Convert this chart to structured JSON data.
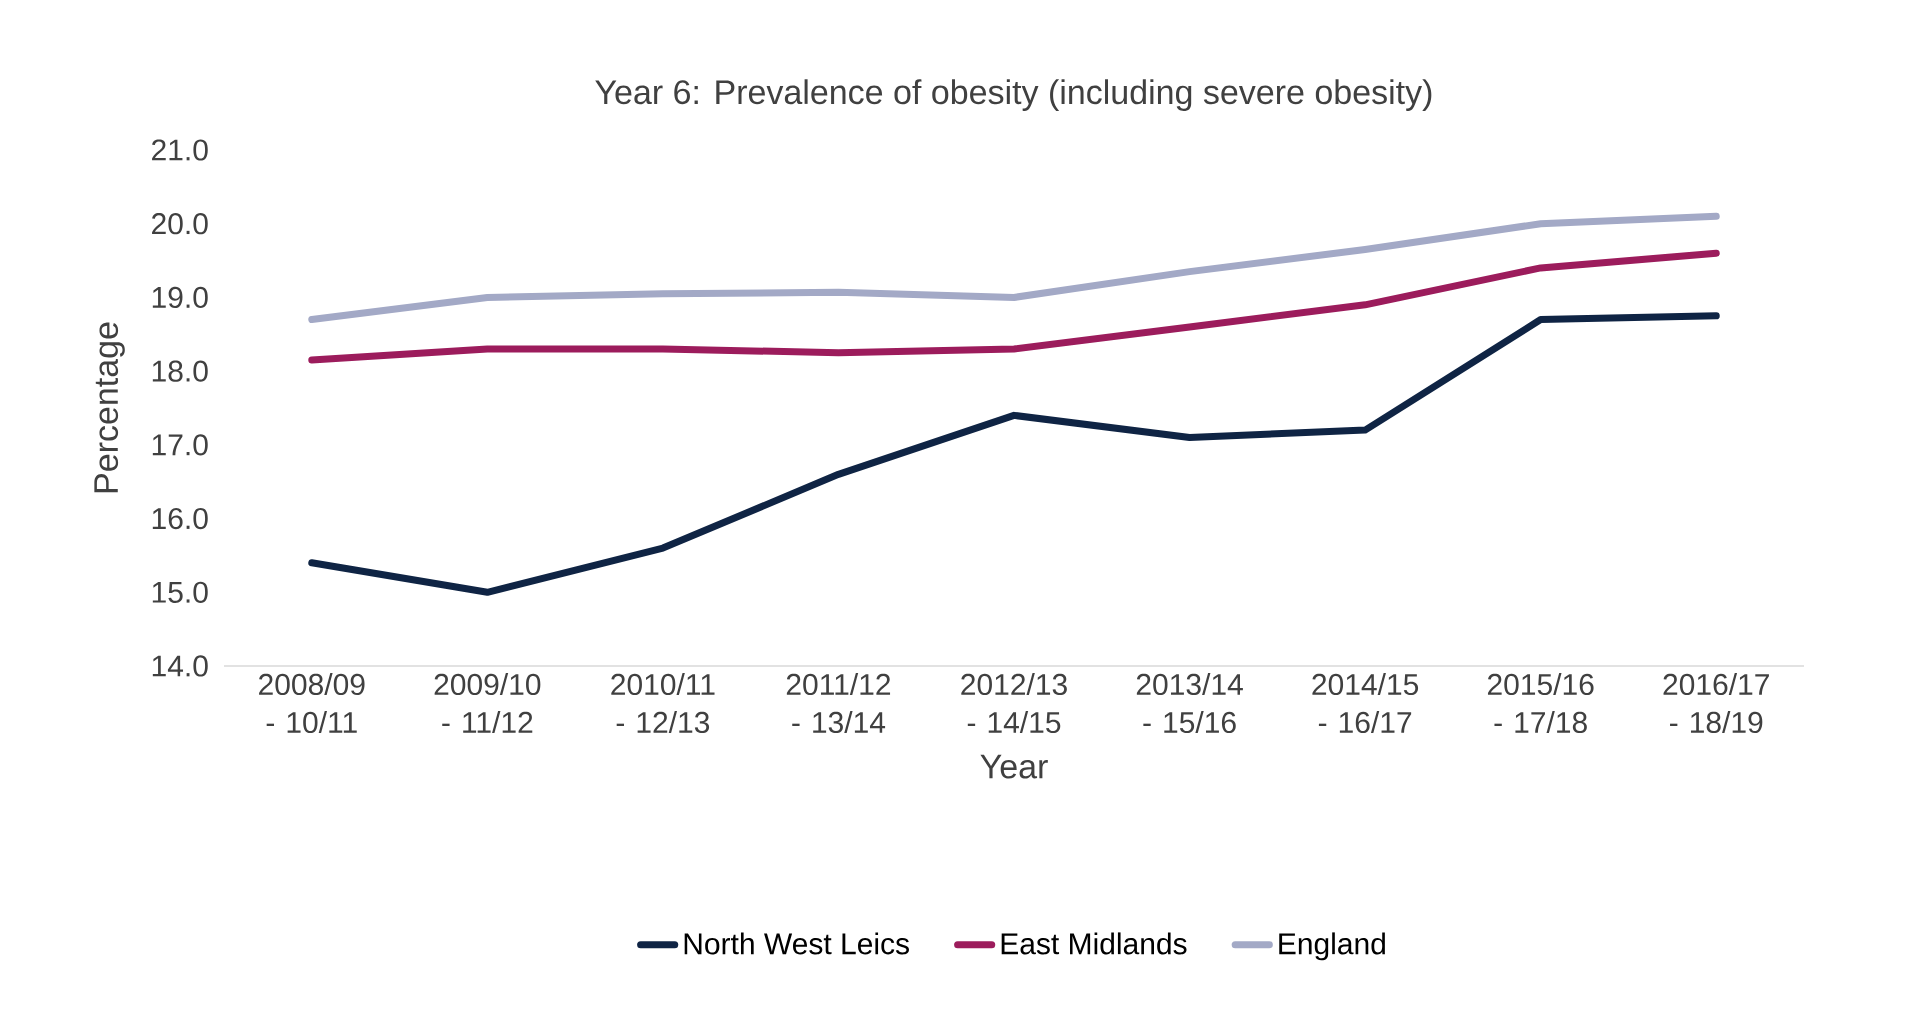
{
  "chart_data": {
    "type": "line",
    "title": "Year 6: Prevalence of obesity (including severe obesity)",
    "xlabel": "Year",
    "ylabel": "Percentage",
    "categories": [
      "2008/09 - 10/11",
      "2009/10 - 11/12",
      "2010/11 - 12/13",
      "2011/12 - 13/14",
      "2012/13 - 14/15",
      "2013/14 - 15/16",
      "2014/15 - 16/17",
      "2015/16 - 17/18",
      "2016/17 - 18/19"
    ],
    "series": [
      {
        "name": "North West Leics",
        "color": "#0f2444",
        "values": [
          15.4,
          15.0,
          15.6,
          16.6,
          17.4,
          17.1,
          17.2,
          18.7,
          18.75
        ]
      },
      {
        "name": "East Midlands",
        "color": "#9c1c5c",
        "values": [
          18.15,
          18.3,
          18.3,
          18.25,
          18.3,
          18.6,
          18.9,
          19.4,
          19.6
        ]
      },
      {
        "name": "England",
        "color": "#a3a9c6",
        "values": [
          18.7,
          19.0,
          19.05,
          19.07,
          19.0,
          19.35,
          19.65,
          20.0,
          20.1
        ]
      }
    ],
    "ylim": [
      14,
      21
    ],
    "yticks": [
      {
        "value": 14,
        "label": "14.0"
      },
      {
        "value": 15,
        "label": "15.0"
      },
      {
        "value": 16,
        "label": "16.0"
      },
      {
        "value": 17,
        "label": "17.0"
      },
      {
        "value": 18,
        "label": "18.0"
      },
      {
        "value": 19,
        "label": "19.0"
      },
      {
        "value": 20,
        "label": "20.0"
      },
      {
        "value": 21,
        "label": "21.0"
      }
    ],
    "grid": false,
    "legend": "bottom",
    "marker": "none",
    "line_style": "solid"
  }
}
